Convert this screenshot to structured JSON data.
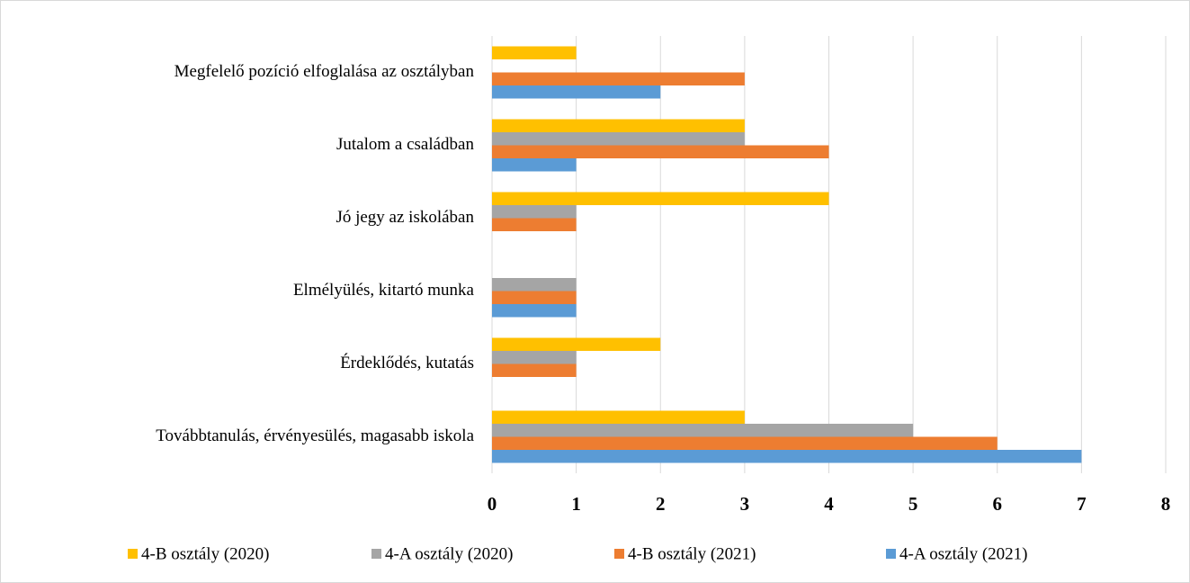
{
  "chart_data": {
    "type": "bar",
    "orientation": "horizontal",
    "categories": [
      "Továbbtanulás, érvényesülés, magasabb iskola",
      "Érdeklődés, kutatás",
      "Elmélyülés, kitartó munka",
      "Jó jegy az iskolában",
      "Jutalom a családban",
      "Megfelelő pozíció elfoglalása az osztályban"
    ],
    "series": [
      {
        "name": "4-B osztály (2020)",
        "color": "#ffc000",
        "values": [
          3,
          2,
          0,
          4,
          3,
          1
        ]
      },
      {
        "name": "4-A osztály (2020)",
        "color": "#a5a5a5",
        "values": [
          5,
          1,
          1,
          1,
          3,
          0
        ]
      },
      {
        "name": "4-B osztály (2021)",
        "color": "#ed7d31",
        "values": [
          6,
          1,
          1,
          1,
          4,
          3
        ]
      },
      {
        "name": "4-A osztály (2021)",
        "color": "#5b9bd5",
        "values": [
          7,
          0,
          1,
          0,
          1,
          2
        ]
      }
    ],
    "xlim": [
      0,
      8
    ],
    "xticks": [
      0,
      1,
      2,
      3,
      4,
      5,
      6,
      7,
      8
    ],
    "grid": true,
    "legend": "bottom"
  }
}
